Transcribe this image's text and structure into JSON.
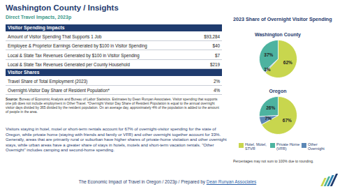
{
  "header": {
    "title": "Washington County / Insights",
    "subtitle": "Direct Travel Impacts, 2023p"
  },
  "table": {
    "sections": [
      {
        "title": "Visitor Spending Impacts",
        "rows": [
          [
            "Amount of Visitor Spending That Supports 1 Job",
            "$93,284"
          ],
          [
            "Employee & Proprietor Earnings Generated by $100 in Visitor Spending",
            "$40"
          ],
          [
            "Local & State Tax Revenues Generated by $100 in Visitor Spending",
            "$7"
          ],
          [
            "Local & State Tax Revenues Generated per County Household",
            "$219"
          ]
        ]
      },
      {
        "title": "Visitor Shares",
        "rows": [
          [
            "Travel Share of Total Employment (2023)",
            "2%"
          ],
          [
            "Overnight-Visitor Day Share of Resident Population*",
            "4%"
          ]
        ]
      }
    ]
  },
  "source": {
    "label": "Source:",
    "text": "Bureau of Economic Analysis and Bureau of Labor Statistics. Estimates by Dean Runyan Associates. Visitor spending that supports one job does not include employment in Other Travel. *Overnight Visitor Day Share of Resident Population is equal to the annual overnight visitor days divided by 365 divided by the resident population. On an average day, approximately 4% of the population is added to the amount of people in the area."
  },
  "paragraph": "Visitors staying in hotel, motel or short-term rentals account for 67% of overnight-visitor spending for the state of Oregon, while private home (staying with friends and family or VFR) and other overnight together account for 33%. Generally, areas that are primarily rural or suburban have higher shares of private-home visitation and other overnight stays, while urban areas have a greater share of stays in hotels, motels and short-term vacation rentals. \"Other Overnight\" includes camping and second-home spending.",
  "footer": {
    "text": "The Economic Impact of Travel in Oregon / 2023p / Prepared by",
    "brand": "Dean Runyan Associates"
  },
  "charts_title": "2023 Share of Overnight Visitor Spending",
  "chart_data": [
    {
      "type": "pie",
      "title": "Washington County",
      "categories": [
        "Hotel, Motel, STVR",
        "Private Home (VFR)",
        "Other Overnight"
      ],
      "values": [
        62,
        37,
        1
      ],
      "value_labels": [
        "62%",
        "37%",
        "1%"
      ],
      "colors": [
        "#c8d64e",
        "#4db3a0",
        "#5b87b5"
      ],
      "data_labels": true
    },
    {
      "type": "pie",
      "title": "Oregon",
      "categories": [
        "Hotel, Motel, STVR",
        "Private Home (VFR)",
        "Other Overnight"
      ],
      "values": [
        67,
        26,
        7
      ],
      "value_labels": [
        "67%",
        "26%",
        "7%"
      ],
      "colors": [
        "#c8d64e",
        "#4db3a0",
        "#5b87b5"
      ],
      "data_labels": true,
      "legend": "bottom"
    }
  ],
  "note": "Percentages may not sum to 100% due to rounding."
}
